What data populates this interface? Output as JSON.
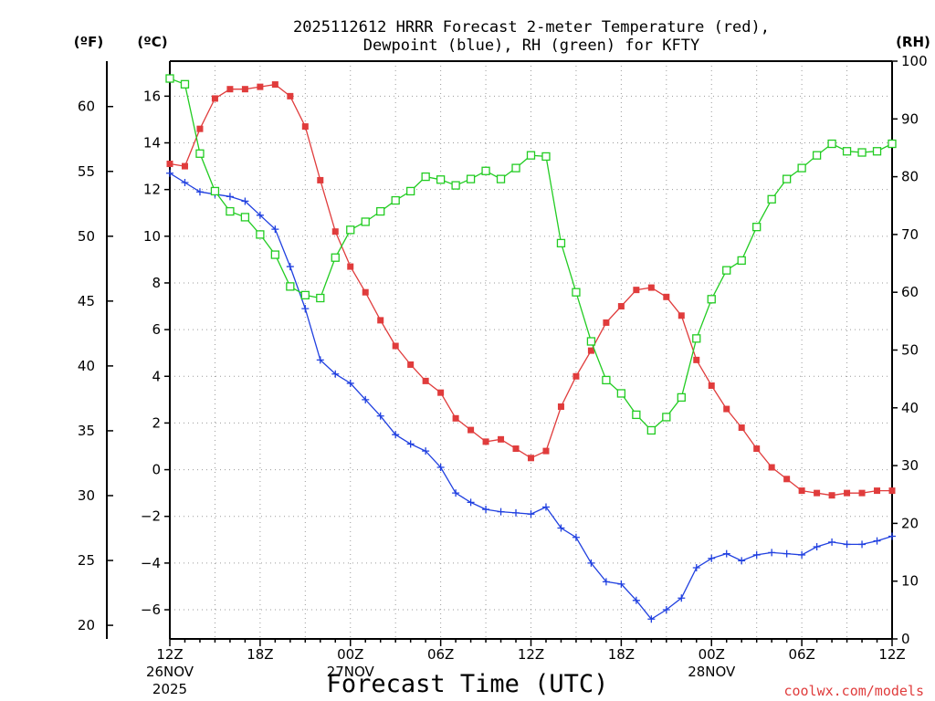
{
  "chart_data": {
    "type": "line",
    "title_line1": "2025112612 HRRR Forecast 2-meter Temperature (red),",
    "title_line2": "Dewpoint (blue), RH (green) for KFTY",
    "xlabel": "Forecast Time (UTC)",
    "credit": "coolwx.com/models",
    "unit_f": "(ºF)",
    "unit_c": "(ºC)",
    "unit_rh": "(RH)",
    "ylim_c": [
      -7.25,
      17.5
    ],
    "ylim_rh": [
      0,
      100
    ],
    "yticks_c": [
      "16",
      "14",
      "12",
      "10",
      "8",
      "6",
      "4",
      "2",
      "0",
      "−2",
      "−4",
      "−6"
    ],
    "yticks_f": [
      "60",
      "55",
      "50",
      "45",
      "40",
      "35",
      "30",
      "25",
      "20"
    ],
    "yticks_rh": [
      "100",
      "90",
      "80",
      "70",
      "60",
      "50",
      "40",
      "30",
      "20",
      "10",
      "0"
    ],
    "x_ticks": [
      {
        "hour": 0,
        "label": "12Z",
        "sub1": "26NOV",
        "sub2": "2025"
      },
      {
        "hour": 6,
        "label": "18Z",
        "sub1": "",
        "sub2": ""
      },
      {
        "hour": 12,
        "label": "00Z",
        "sub1": "27NOV",
        "sub2": ""
      },
      {
        "hour": 18,
        "label": "06Z",
        "sub1": "",
        "sub2": ""
      },
      {
        "hour": 24,
        "label": "12Z",
        "sub1": "",
        "sub2": ""
      },
      {
        "hour": 30,
        "label": "18Z",
        "sub1": "",
        "sub2": ""
      },
      {
        "hour": 36,
        "label": "00Z",
        "sub1": "28NOV",
        "sub2": ""
      },
      {
        "hour": 42,
        "label": "06Z",
        "sub1": "",
        "sub2": ""
      },
      {
        "hour": 48,
        "label": "12Z",
        "sub1": "",
        "sub2": ""
      }
    ],
    "x_hours": [
      0,
      1,
      2,
      3,
      4,
      5,
      6,
      7,
      8,
      9,
      10,
      11,
      12,
      13,
      14,
      15,
      16,
      17,
      18,
      19,
      20,
      21,
      22,
      23,
      24,
      25,
      26,
      27,
      28,
      29,
      30,
      31,
      32,
      33,
      34,
      35,
      36,
      37,
      38,
      39,
      40,
      41,
      42,
      43,
      44,
      45,
      46,
      47,
      48
    ],
    "series": [
      {
        "name": "Temperature",
        "axis": "celsius",
        "color": "#e03c3c",
        "marker": "filled-square",
        "values": [
          13.1,
          13.0,
          14.6,
          15.9,
          16.3,
          16.3,
          16.4,
          16.5,
          16.0,
          14.7,
          12.4,
          10.2,
          8.7,
          7.6,
          6.4,
          5.3,
          4.5,
          3.8,
          3.3,
          2.2,
          1.7,
          1.2,
          1.3,
          0.9,
          0.5,
          0.8,
          2.7,
          4.0,
          5.1,
          6.3,
          7.0,
          7.7,
          7.8,
          7.4,
          6.6,
          4.7,
          3.6,
          2.6,
          1.8,
          0.9,
          0.1,
          -0.4,
          -0.9,
          -1.0,
          -1.1,
          -1.0,
          -1.0,
          -0.9,
          -0.9
        ]
      },
      {
        "name": "Dewpoint",
        "axis": "celsius",
        "color": "#2040e0",
        "marker": "plus",
        "values": [
          12.7,
          12.3,
          11.9,
          11.8,
          11.7,
          11.5,
          10.9,
          10.3,
          8.7,
          6.9,
          4.7,
          4.1,
          3.7,
          3.0,
          2.3,
          1.5,
          1.1,
          0.8,
          0.1,
          -1.0,
          -1.4,
          -1.7,
          -1.8,
          -1.85,
          -1.9,
          -1.6,
          -2.5,
          -2.9,
          -4.0,
          -4.8,
          -4.9,
          -5.6,
          -6.4,
          -6.0,
          -5.5,
          -4.2,
          -3.8,
          -3.6,
          -3.9,
          -3.65,
          -3.55,
          -3.6,
          -3.65,
          -3.3,
          -3.1,
          -3.2,
          -3.2,
          -3.05,
          -2.85
        ]
      },
      {
        "name": "RH",
        "axis": "rh",
        "color": "#22cc22",
        "marker": "open-square",
        "values": [
          97,
          96,
          84,
          77.5,
          74,
          73,
          70,
          66.5,
          61,
          59.5,
          59,
          66,
          70.8,
          72.2,
          74,
          75.9,
          77.5,
          80,
          79.5,
          78.5,
          79.6,
          81,
          79.6,
          81.5,
          83.7,
          83.5,
          68.5,
          60,
          51.5,
          44.8,
          42.5,
          38.8,
          36.1,
          38.4,
          41.8,
          52,
          58.8,
          63.8,
          65.5,
          71.3,
          76.1,
          79.6,
          81.5,
          83.7,
          85.7,
          84.4,
          84.2,
          84.4,
          85.7
        ]
      }
    ]
  }
}
